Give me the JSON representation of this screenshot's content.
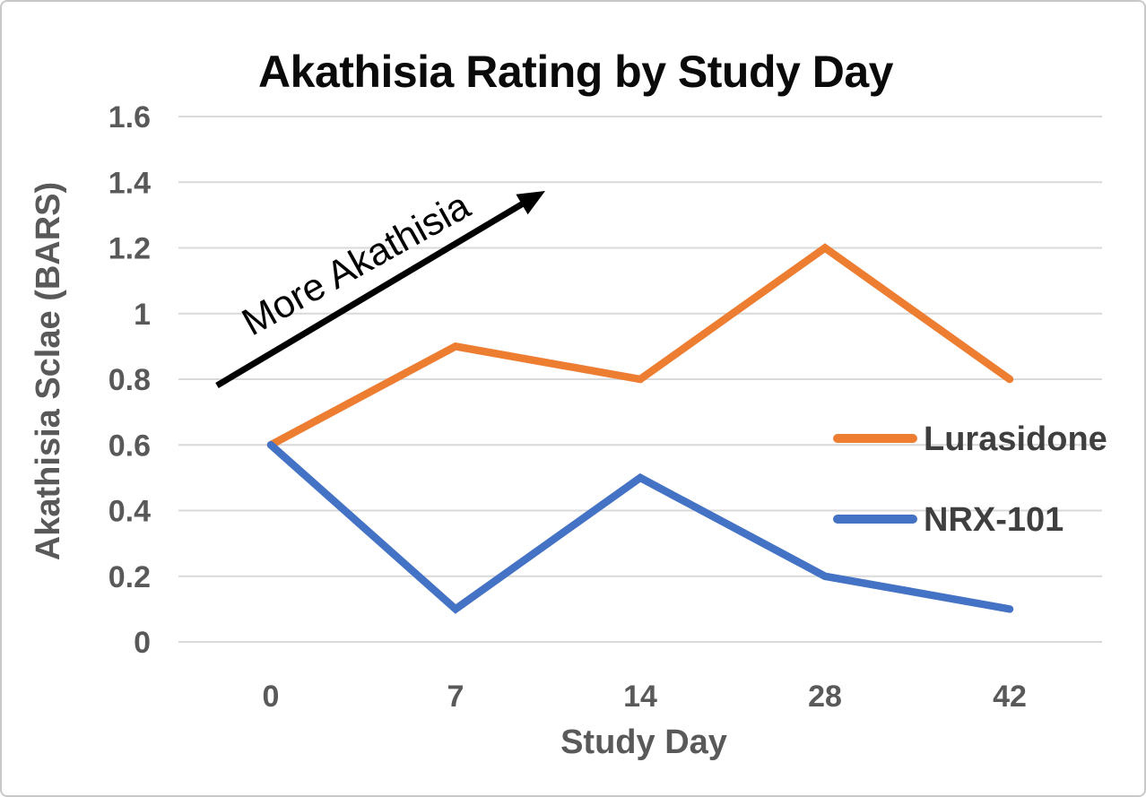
{
  "chart_data": {
    "type": "line",
    "title": "Akathisia Rating by Study Day",
    "xlabel": "Study Day",
    "ylabel": "Akathisia Sclae (BARS)",
    "categories": [
      "0",
      "7",
      "14",
      "28",
      "42"
    ],
    "series": [
      {
        "name": "Lurasidone",
        "color": "#ED7D31",
        "values": [
          0.6,
          0.9,
          0.8,
          1.2,
          0.8
        ]
      },
      {
        "name": "NRX-101",
        "color": "#4472C4",
        "values": [
          0.6,
          0.1,
          0.5,
          0.2,
          0.1
        ]
      }
    ],
    "ylim": [
      0,
      1.6
    ],
    "ytick_step": 0.2,
    "ytick_labels": [
      "0",
      "0.2",
      "0.4",
      "0.6",
      "0.8",
      "1",
      "1.2",
      "1.4",
      "1.6"
    ],
    "grid": "horizontal",
    "legend_position": "right-middle",
    "annotation": {
      "text": "More Akathisia",
      "arrow": true
    }
  },
  "colors": {
    "axis_text": "#595959",
    "legend_text": "#3f3f3f",
    "gridline": "#d9d9d9",
    "title_text": "#0a0a0a",
    "annotation": "#000000",
    "frame_border": "#c8c8c8",
    "background": "#ffffff"
  }
}
